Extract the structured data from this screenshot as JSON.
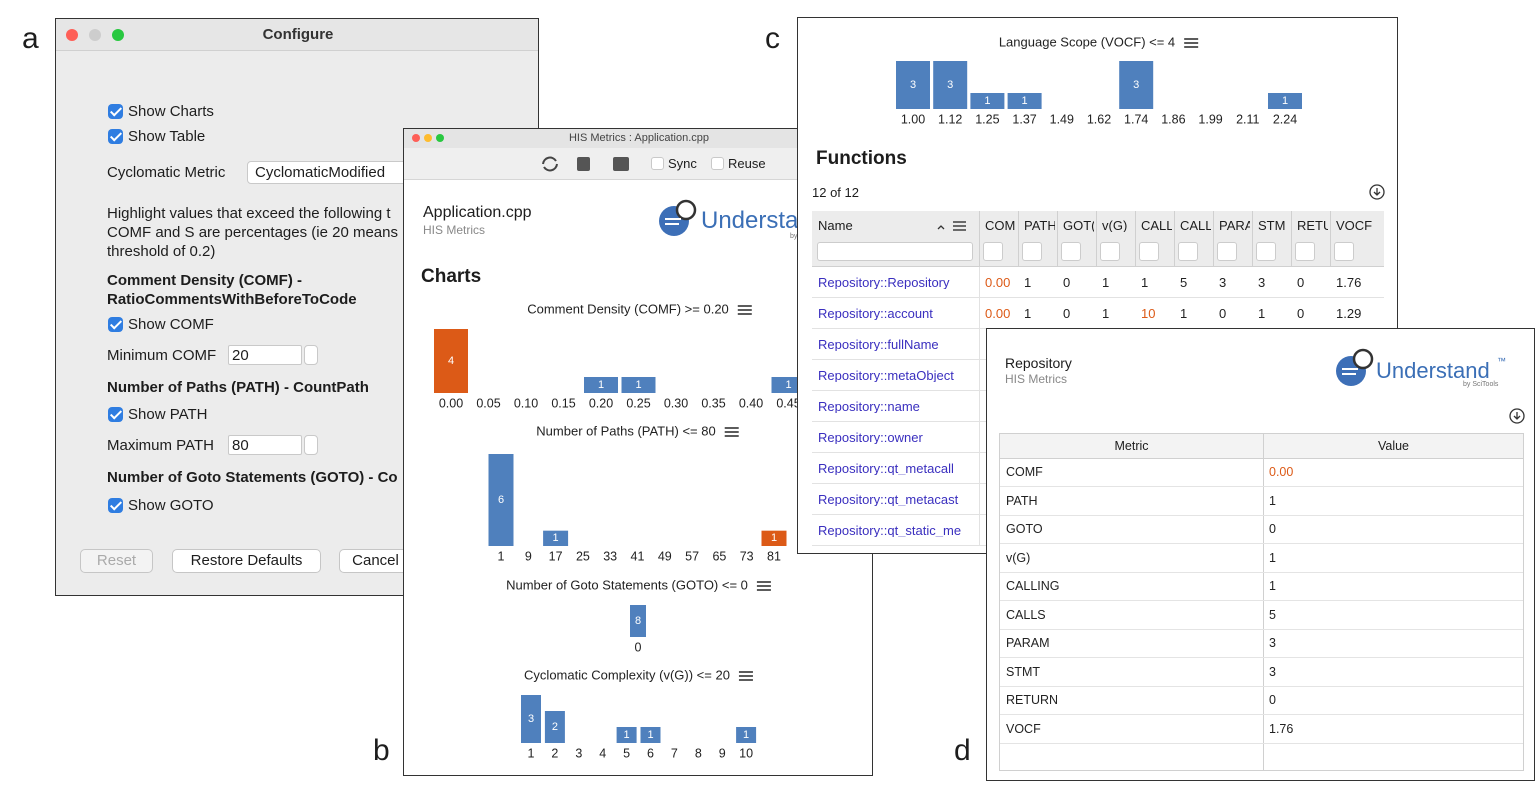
{
  "labels": {
    "a": "a",
    "b": "b",
    "c": "c",
    "d": "d"
  },
  "configure": {
    "title": "Configure",
    "show_charts": "Show Charts",
    "show_table": "Show Table",
    "cyclomatic_metric_label": "Cyclomatic Metric",
    "cyclomatic_metric_value": "CyclomaticModified",
    "description": [
      "Highlight values that exceed the following t",
      "COMF and S are percentages (ie 20 means",
      "threshold of 0.2)"
    ],
    "sections": [
      {
        "heading": "Comment Density (COMF) - RatioCommentsWithBeforeToCode",
        "show": "Show COMF",
        "field_label": "Minimum COMF",
        "field_value": 20
      },
      {
        "heading": "Number of Paths (PATH) - CountPath",
        "show": "Show PATH",
        "field_label": "Maximum PATH",
        "field_value": 80
      },
      {
        "heading": "Number of Goto Statements (GOTO) - Co",
        "show": "Show GOTO"
      }
    ],
    "buttons": [
      "Reset",
      "Restore Defaults",
      "Cancel"
    ]
  },
  "his_window": {
    "title": "HIS Metrics : Application.cpp",
    "toolbar": [
      "Sync",
      "Reuse"
    ],
    "file": "Application.cpp",
    "subtitle": "HIS Metrics",
    "logo": "Understand",
    "logo_by": "by",
    "heading": "Charts",
    "charts": [
      {
        "type": "bar",
        "title": "Comment Density (COMF) >= 0.20",
        "categories": [
          "0.00",
          "0.05",
          "0.10",
          "0.15",
          "0.20",
          "0.25",
          "0.30",
          "0.35",
          "0.40",
          "0.45"
        ],
        "values": [
          4,
          null,
          null,
          null,
          1,
          1,
          null,
          null,
          null,
          1
        ],
        "color": "#4f80bd",
        "highlight_color": "#dc5a17",
        "highlight": [
          0
        ]
      },
      {
        "type": "bar",
        "title": "Number of Paths (PATH) <= 80",
        "categories": [
          1,
          9,
          17,
          25,
          33,
          41,
          49,
          57,
          65,
          73,
          81
        ],
        "values": [
          6,
          null,
          1,
          null,
          null,
          null,
          null,
          null,
          null,
          null,
          1
        ],
        "color": "#4f80bd",
        "highlight_color": "#dc5a17",
        "highlight": [
          10
        ]
      },
      {
        "type": "bar",
        "title": "Number of Goto Statements (GOTO) <= 0",
        "categories": [
          0
        ],
        "values": [
          8
        ],
        "color": "#4f80bd",
        "highlight_color": "#dc5a17",
        "highlight": []
      },
      {
        "type": "bar",
        "title": "Cyclomatic Complexity (v(G)) <= 20",
        "categories": [
          1,
          2,
          3,
          4,
          5,
          6,
          7,
          8,
          9,
          10
        ],
        "values": [
          3,
          2,
          null,
          null,
          1,
          1,
          null,
          null,
          null,
          1
        ],
        "color": "#4f80bd",
        "highlight_color": "#dc5a17",
        "highlight": []
      }
    ]
  },
  "functions_window": {
    "chart": {
      "type": "bar",
      "title": "Language Scope (VOCF) <= 4",
      "categories": [
        "1.00",
        "1.12",
        "1.25",
        "1.37",
        "1.49",
        "1.62",
        "1.74",
        "1.86",
        "1.99",
        "2.11",
        "2.24"
      ],
      "values": [
        3,
        3,
        1,
        1,
        null,
        null,
        3,
        null,
        null,
        null,
        1
      ],
      "color": "#4f80bd",
      "highlight_color": "#dc5a17",
      "highlight": []
    },
    "heading": "Functions",
    "count": "12 of 12",
    "table": {
      "columns": [
        "Name",
        "COM",
        "PATH",
        "GOT(",
        "v(G)",
        "CALL",
        "CALL",
        "PARA",
        "STM",
        "RETU",
        "VOCF"
      ],
      "rows": [
        [
          "Repository::Repository",
          "0.00",
          1,
          0,
          1,
          1,
          5,
          3,
          3,
          0,
          1.76
        ],
        [
          "Repository::account",
          "0.00",
          1,
          0,
          1,
          10,
          1,
          0,
          1,
          0,
          1.29
        ],
        [
          "Repository::fullName"
        ],
        [
          "Repository::metaObject"
        ],
        [
          "Repository::name"
        ],
        [
          "Repository::owner"
        ],
        [
          "Repository::qt_metacall"
        ],
        [
          "Repository::qt_metacast"
        ],
        [
          "Repository::qt_static_me"
        ]
      ]
    }
  },
  "metrics_window": {
    "title": "Repository",
    "subtitle": "HIS Metrics",
    "logo": "Understand",
    "logo_tm": "™",
    "logo_by": "by SciTools",
    "table": {
      "columns": [
        "Metric",
        "Value"
      ],
      "rows": [
        [
          "COMF",
          "0.00"
        ],
        [
          "PATH",
          1
        ],
        [
          "GOTO",
          0
        ],
        [
          "v(G)",
          1
        ],
        [
          "CALLING",
          1
        ],
        [
          "CALLS",
          5
        ],
        [
          "PARAM",
          3
        ],
        [
          "STMT",
          3
        ],
        [
          "RETURN",
          0
        ],
        [
          "VOCF",
          1.76
        ]
      ]
    }
  }
}
